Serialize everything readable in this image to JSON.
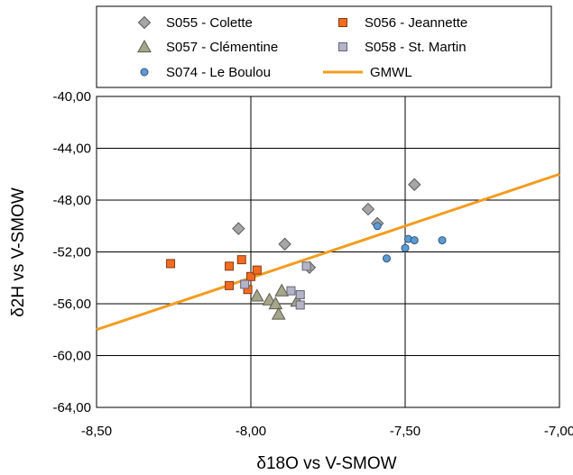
{
  "chart_data": {
    "type": "scatter",
    "xlabel": "δ18O vs V-SMOW",
    "ylabel": "δ2H vs V-SMOW",
    "xlim": [
      -8.5,
      -7.0
    ],
    "ylim": [
      -64,
      -40
    ],
    "xticks": [
      -8.5,
      -8.0,
      -7.5,
      -7.0
    ],
    "xtick_labels": [
      "-8,50",
      "-8,00",
      "-7,50",
      "-7,00"
    ],
    "yticks": [
      -40,
      -44,
      -48,
      -52,
      -56,
      -60,
      -64
    ],
    "ytick_labels": [
      "-40,00",
      "-44,00",
      "-48,00",
      "-52,00",
      "-56,00",
      "-60,00",
      "-64,00"
    ],
    "grid": true,
    "legend_position": "top",
    "series": [
      {
        "name": "S055 - Colette",
        "marker": "diamond",
        "color": "#a6a6a6",
        "points": [
          [
            -8.04,
            -50.2
          ],
          [
            -7.89,
            -51.4
          ],
          [
            -7.81,
            -53.2
          ],
          [
            -7.62,
            -48.7
          ],
          [
            -7.59,
            -49.8
          ],
          [
            -7.47,
            -46.8
          ]
        ]
      },
      {
        "name": "S056 - Jeannette",
        "marker": "square",
        "color": "#f26b21",
        "points": [
          [
            -8.26,
            -52.9
          ],
          [
            -8.07,
            -53.1
          ],
          [
            -8.07,
            -54.6
          ],
          [
            -8.03,
            -52.6
          ],
          [
            -8.01,
            -54.9
          ],
          [
            -8.0,
            -53.9
          ],
          [
            -7.98,
            -53.4
          ]
        ]
      },
      {
        "name": "S057 - Clémentine",
        "marker": "triangle",
        "color": "#a6a68c",
        "points": [
          [
            -7.98,
            -55.4
          ],
          [
            -7.94,
            -55.7
          ],
          [
            -7.92,
            -56.0
          ],
          [
            -7.91,
            -56.8
          ],
          [
            -7.9,
            -55.0
          ],
          [
            -7.85,
            -55.8
          ]
        ]
      },
      {
        "name": "S058 - St. Martin",
        "marker": "square",
        "color": "#b4b4c8",
        "points": [
          [
            -8.02,
            -54.5
          ],
          [
            -7.87,
            -55.0
          ],
          [
            -7.84,
            -55.3
          ],
          [
            -7.84,
            -56.1
          ],
          [
            -7.82,
            -53.1
          ]
        ]
      },
      {
        "name": "S074 - Le Boulou",
        "marker": "circle",
        "color": "#5b9bd5",
        "points": [
          [
            -7.59,
            -50.0
          ],
          [
            -7.56,
            -52.5
          ],
          [
            -7.5,
            -51.7
          ],
          [
            -7.49,
            -51.0
          ],
          [
            -7.47,
            -51.1
          ],
          [
            -7.38,
            -51.1
          ]
        ]
      },
      {
        "name": "GMWL",
        "marker": "line",
        "color": "#f39c1f",
        "points": [
          [
            -8.5,
            -58.0
          ],
          [
            -7.0,
            -46.0
          ]
        ]
      }
    ]
  }
}
